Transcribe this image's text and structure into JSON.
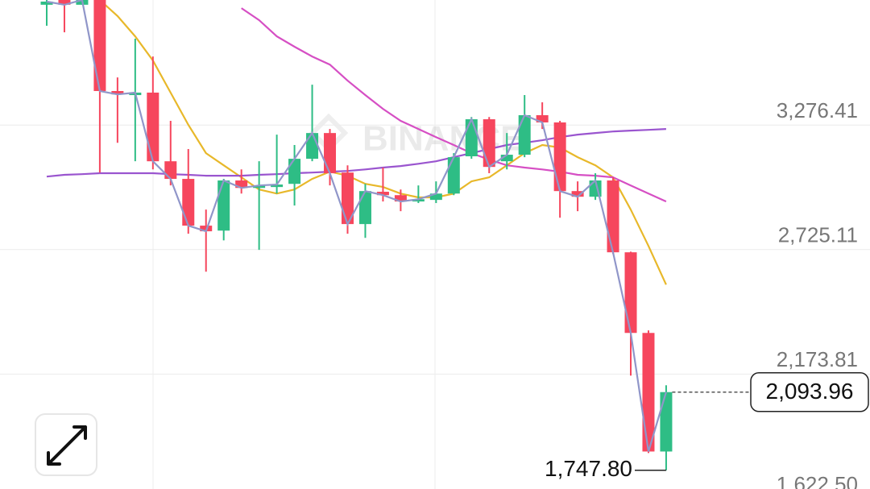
{
  "chart_data": {
    "type": "candlestick",
    "watermark": "BINANCE",
    "ylim": [
      1665,
      3830
    ],
    "yticks": [
      {
        "value": 3276.41,
        "label": "3,276.41"
      },
      {
        "value": 2725.11,
        "label": "2,725.11"
      },
      {
        "value": 2173.81,
        "label": "2,173.81"
      },
      {
        "value": 1622.5,
        "label": "1,622.50"
      }
    ],
    "grid": true,
    "up_color": "#2ebd85",
    "down_color": "#f6465d",
    "open": [
      3809,
      3830,
      3809,
      3830,
      3427,
      3409,
      3420,
      3116,
      3038,
      2831,
      2809,
      3031,
      2998,
      3002,
      3016,
      3127,
      3241,
      3066,
      2838,
      2981,
      2966,
      2938,
      2945,
      2973,
      3138,
      3302,
      3116,
      3145,
      3320,
      3288,
      2984,
      2959,
      3031,
      2713,
      2356,
      1831
    ],
    "high": [
      3830,
      3830,
      3830,
      3830,
      3487,
      3659,
      3580,
      3295,
      3170,
      2902,
      3038,
      3080,
      3116,
      3234,
      3188,
      3455,
      3259,
      3098,
      3016,
      3088,
      2991,
      3009,
      3027,
      3152,
      3312,
      3312,
      3241,
      3409,
      3377,
      3295,
      3027,
      3063,
      3045,
      2716,
      2367,
      2124
    ],
    "low": [
      3716,
      3687,
      3809,
      3066,
      3198,
      3116,
      3080,
      3009,
      2795,
      2627,
      2766,
      2973,
      2724,
      2973,
      2920,
      3116,
      3009,
      2795,
      2777,
      2938,
      2895,
      2931,
      2931,
      2966,
      3127,
      3063,
      3080,
      3134,
      3259,
      2866,
      2895,
      2945,
      2706,
      2167,
      1824,
      1747.8
    ],
    "close": [
      3823,
      3809,
      3830,
      3427,
      3412,
      3420,
      3116,
      3038,
      2831,
      2806,
      3031,
      2998,
      3009,
      3013,
      3127,
      3241,
      3063,
      2838,
      2984,
      2966,
      2938,
      2948,
      2973,
      3134,
      3302,
      3091,
      3145,
      3320,
      3288,
      2984,
      2959,
      3031,
      2713,
      2356,
      1831,
      2093.96
    ],
    "series": [
      {
        "color": "#e8b82a",
        "values": [
          null,
          null,
          null,
          3830,
          3759,
          3669,
          3562,
          3420,
          3277,
          3152,
          3098,
          3045,
          2991,
          2973,
          2991,
          3038,
          3070,
          3052,
          3016,
          3002,
          2973,
          2956,
          2956,
          2973,
          3027,
          3045,
          3098,
          3152,
          3188,
          3177,
          3134,
          3098,
          3045,
          2902,
          2741,
          2570
        ]
      },
      {
        "color": "#d64fc4",
        "values": [
          null,
          null,
          null,
          null,
          null,
          null,
          null,
          null,
          null,
          null,
          null,
          3794,
          3741,
          3669,
          3623,
          3580,
          3544,
          3473,
          3409,
          3348,
          3295,
          3259,
          3223,
          3188,
          3152,
          3123,
          3098,
          3088,
          3080,
          3070,
          3056,
          3052,
          3045,
          3009,
          2973,
          2938
        ]
      },
      {
        "color": "#9a55cf",
        "values": [
          3048,
          3056,
          3059,
          3063,
          3063,
          3063,
          3063,
          3059,
          3056,
          3052,
          3052,
          3052,
          3056,
          3059,
          3063,
          3066,
          3070,
          3073,
          3080,
          3088,
          3095,
          3105,
          3116,
          3134,
          3152,
          3170,
          3188,
          3198,
          3209,
          3223,
          3234,
          3241,
          3248,
          3252,
          3255,
          3259
        ]
      }
    ],
    "close_line_color": "#9096c9",
    "annotations": [
      {
        "value": 2093.96,
        "label": "2,093.96"
      },
      {
        "value": 1747.8,
        "label": "1,747.80"
      }
    ]
  }
}
